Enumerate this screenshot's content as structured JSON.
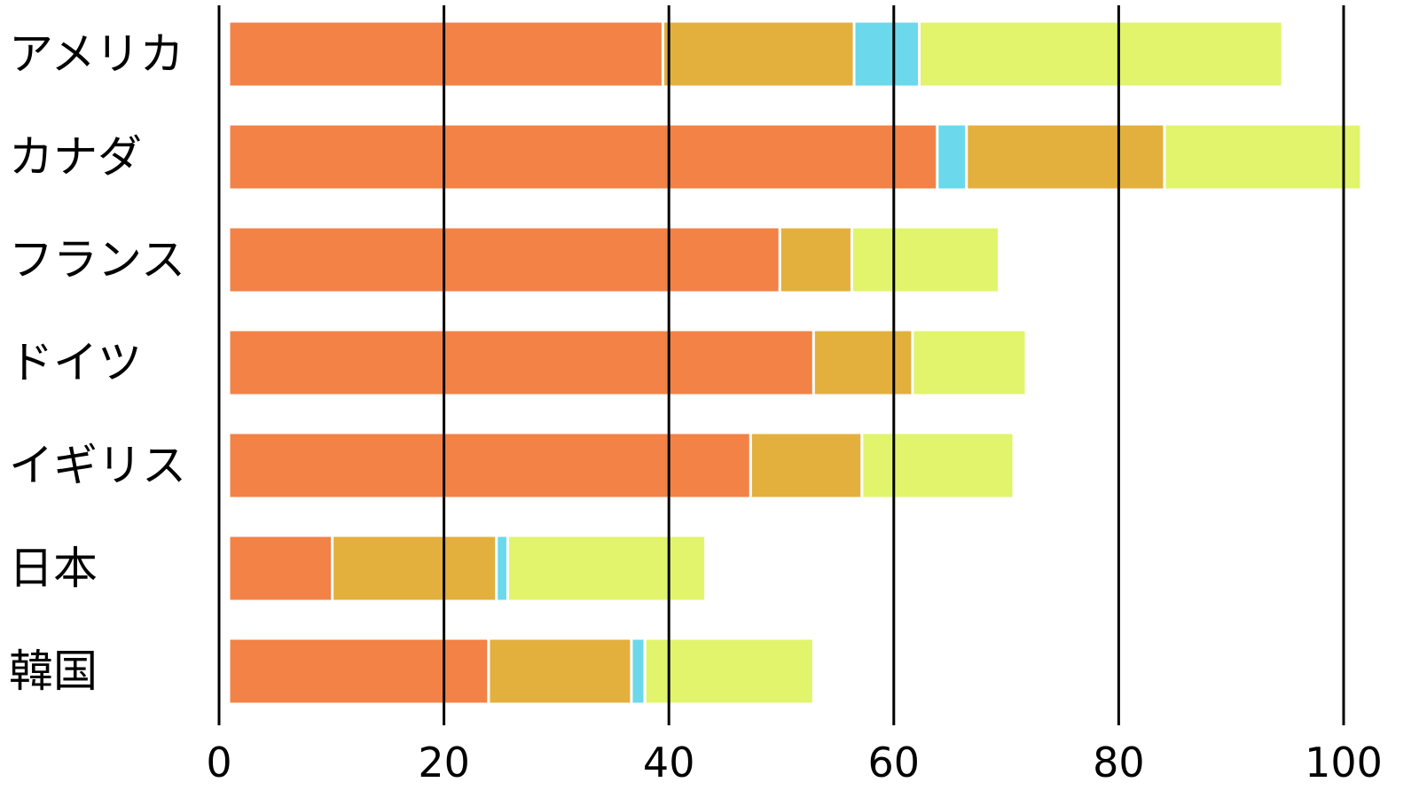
{
  "chart_data": {
    "type": "bar",
    "orientation": "horizontal",
    "stacked": true,
    "title": "",
    "xlabel": "",
    "ylabel": "",
    "xlim": [
      0,
      100
    ],
    "x_ticks": [
      0,
      20,
      40,
      60,
      80,
      100
    ],
    "grid": "vertical",
    "legend": "none",
    "categories": [
      "アメリカ",
      "カナダ",
      "フランス",
      "ドイツ",
      "イギリス",
      "日本",
      "韓国"
    ],
    "rows": [
      {
        "category": "アメリカ",
        "segments": [
          {
            "value": 38.6,
            "color": "#f28246"
          },
          {
            "value": 17.0,
            "color": "#e3b03e"
          },
          {
            "value": 5.8,
            "color": "#6bd8eb"
          },
          {
            "value": 32.3,
            "color": "#e1f46c"
          }
        ]
      },
      {
        "category": "カナダ",
        "segments": [
          {
            "value": 63.0,
            "color": "#f28246"
          },
          {
            "value": 2.6,
            "color": "#6bd8eb"
          },
          {
            "value": 17.6,
            "color": "#e3b03e"
          },
          {
            "value": 17.5,
            "color": "#e1f46c"
          }
        ]
      },
      {
        "category": "フランス",
        "segments": [
          {
            "value": 49.0,
            "color": "#f28246"
          },
          {
            "value": 6.4,
            "color": "#e3b03e"
          },
          {
            "value": 13.1,
            "color": "#e1f46c"
          }
        ]
      },
      {
        "category": "ドイツ",
        "segments": [
          {
            "value": 52.0,
            "color": "#f28246"
          },
          {
            "value": 8.8,
            "color": "#e3b03e"
          },
          {
            "value": 10.1,
            "color": "#e1f46c"
          }
        ]
      },
      {
        "category": "イギリス",
        "segments": [
          {
            "value": 46.4,
            "color": "#f28246"
          },
          {
            "value": 9.9,
            "color": "#e3b03e"
          },
          {
            "value": 13.5,
            "color": "#e1f46c"
          }
        ]
      },
      {
        "category": "日本",
        "segments": [
          {
            "value": 9.2,
            "color": "#f28246"
          },
          {
            "value": 14.6,
            "color": "#e3b03e"
          },
          {
            "value": 1.0,
            "color": "#6bd8eb"
          },
          {
            "value": 17.6,
            "color": "#e1f46c"
          }
        ]
      },
      {
        "category": "韓国",
        "segments": [
          {
            "value": 23.1,
            "color": "#f28246"
          },
          {
            "value": 12.7,
            "color": "#e3b03e"
          },
          {
            "value": 1.2,
            "color": "#6bd8eb"
          },
          {
            "value": 15.0,
            "color": "#e1f46c"
          }
        ]
      }
    ]
  }
}
